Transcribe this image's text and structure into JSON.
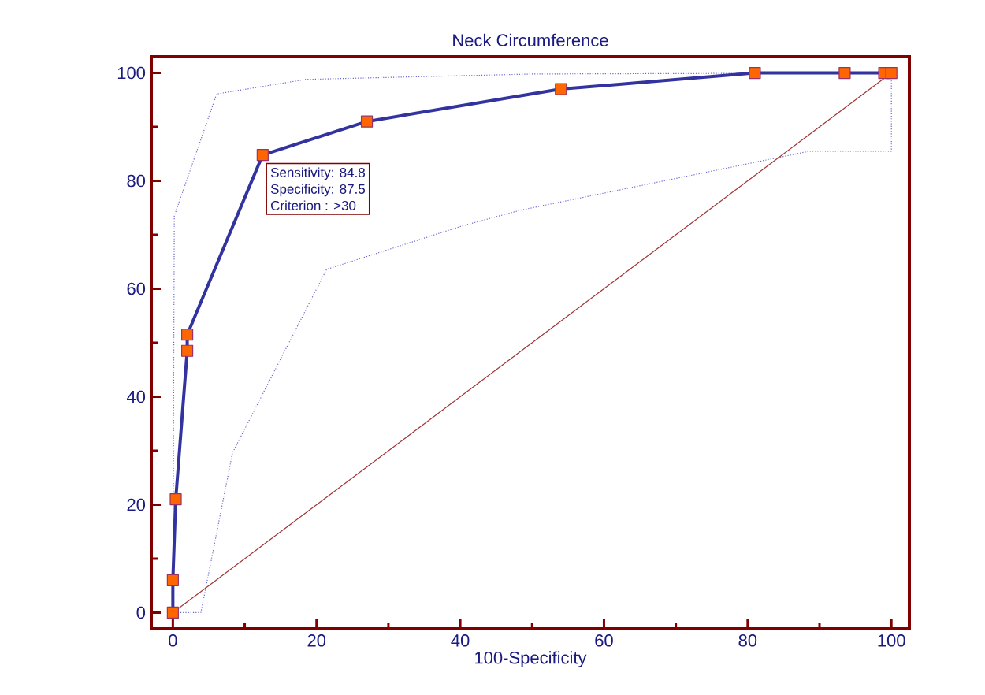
{
  "chart_data": {
    "type": "line",
    "title": "Neck Circumference",
    "xlabel": "100-Specificity",
    "xlim": [
      -3,
      102.5
    ],
    "ylim": [
      -3,
      103
    ],
    "xticks": [
      0,
      20,
      40,
      60,
      80,
      100
    ],
    "yticks": [
      0,
      20,
      40,
      60,
      80,
      100
    ],
    "grid": false,
    "series": [
      {
        "color": "#3333a0",
        "marker": "square",
        "line_style": "solid",
        "x": [
          0,
          0,
          0.4,
          2,
          2,
          12.5,
          27,
          54,
          81,
          93.5,
          99,
          100
        ],
        "values": [
          0,
          6,
          21,
          48.5,
          51.5,
          84.8,
          91,
          97,
          100,
          100,
          100,
          100
        ]
      },
      {
        "color": "#6666cc",
        "marker": "none",
        "line_style": "dotted",
        "x": [
          0,
          0.2,
          6.1,
          18.5,
          50,
          100,
          100
        ],
        "values": [
          0,
          73.5,
          96.1,
          98.8,
          99.8,
          100,
          100
        ]
      },
      {
        "color": "#6666cc",
        "marker": "none",
        "line_style": "dotted",
        "x": [
          0,
          3.9,
          8.3,
          21.4,
          40.4,
          48.5,
          88.6,
          100,
          100
        ],
        "values": [
          0,
          0,
          29.6,
          63.6,
          71.7,
          74.6,
          85.5,
          85.5,
          100
        ]
      },
      {
        "color": "#a03030",
        "marker": "none",
        "line_style": "solid",
        "x": [
          0,
          100
        ],
        "values": [
          0,
          100
        ]
      }
    ],
    "annotations": [
      {
        "text": "Sensitivity: 84.8",
        "x": 12.5,
        "y": 84.8
      },
      "Specificity: 87.5",
      "Criterion : >30"
    ]
  }
}
